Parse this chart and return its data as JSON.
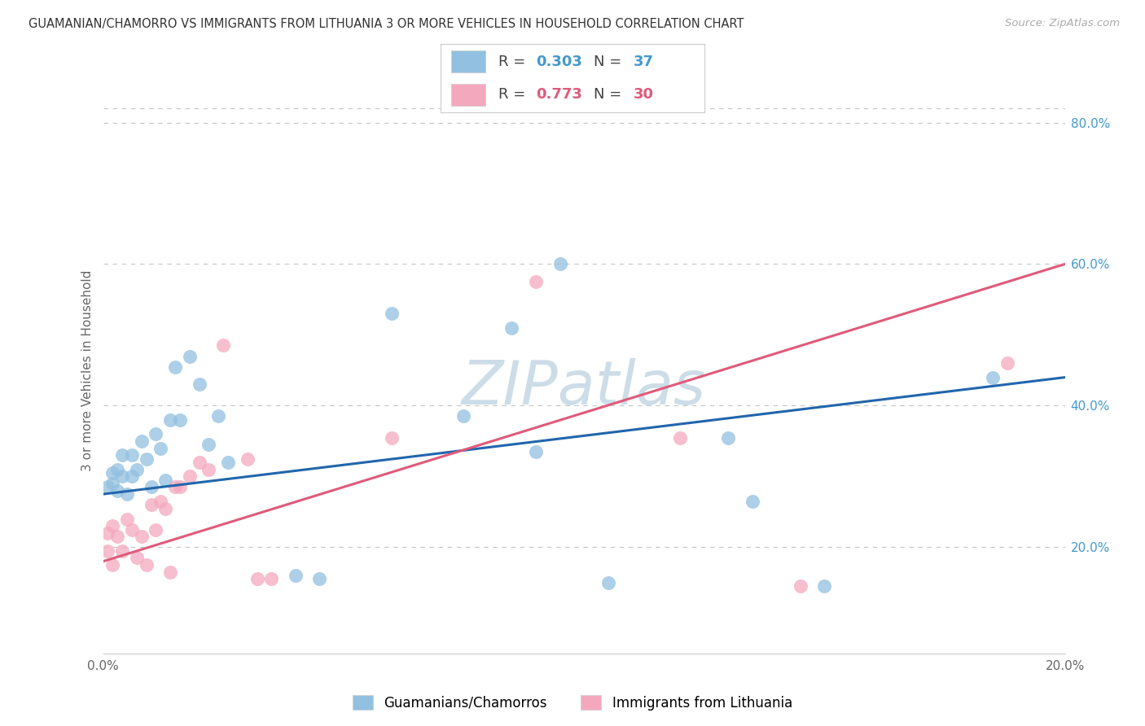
{
  "title": "GUAMANIAN/CHAMORRO VS IMMIGRANTS FROM LITHUANIA 3 OR MORE VEHICLES IN HOUSEHOLD CORRELATION CHART",
  "source": "Source: ZipAtlas.com",
  "ylabel": "3 or more Vehicles in Household",
  "xlim": [
    0.0,
    0.2
  ],
  "ylim": [
    0.05,
    0.85
  ],
  "ytick_right": [
    0.2,
    0.4,
    0.6,
    0.8
  ],
  "ytick_right_labels": [
    "20.0%",
    "40.0%",
    "60.0%",
    "80.0%"
  ],
  "blue_color": "#92c0e0",
  "pink_color": "#f4a8be",
  "blue_line_color": "#2166ac",
  "pink_line_color": "#e05a7a",
  "blue_R": 0.303,
  "blue_N": 37,
  "pink_R": 0.773,
  "pink_N": 30,
  "watermark": "ZIPatlas",
  "watermark_color": "#ccdde8",
  "background_color": "#ffffff",
  "legend_label_blue": "Guamanians/Chamorros",
  "legend_label_pink": "Immigrants from Lithuania",
  "blue_x": [
    0.001,
    0.002,
    0.002,
    0.003,
    0.003,
    0.004,
    0.004,
    0.005,
    0.006,
    0.006,
    0.007,
    0.008,
    0.009,
    0.01,
    0.011,
    0.012,
    0.013,
    0.014,
    0.015,
    0.016,
    0.018,
    0.02,
    0.022,
    0.024,
    0.026,
    0.04,
    0.045,
    0.06,
    0.075,
    0.085,
    0.09,
    0.095,
    0.105,
    0.13,
    0.135,
    0.15,
    0.185
  ],
  "blue_y": [
    0.285,
    0.29,
    0.305,
    0.28,
    0.31,
    0.3,
    0.33,
    0.275,
    0.3,
    0.33,
    0.31,
    0.35,
    0.325,
    0.285,
    0.36,
    0.34,
    0.295,
    0.38,
    0.455,
    0.38,
    0.47,
    0.43,
    0.345,
    0.385,
    0.32,
    0.16,
    0.155,
    0.53,
    0.385,
    0.51,
    0.335,
    0.6,
    0.15,
    0.355,
    0.265,
    0.145,
    0.44
  ],
  "pink_x": [
    0.001,
    0.001,
    0.002,
    0.002,
    0.003,
    0.004,
    0.005,
    0.006,
    0.007,
    0.008,
    0.009,
    0.01,
    0.011,
    0.012,
    0.013,
    0.014,
    0.015,
    0.016,
    0.018,
    0.02,
    0.022,
    0.025,
    0.03,
    0.032,
    0.035,
    0.06,
    0.09,
    0.12,
    0.145,
    0.188
  ],
  "pink_y": [
    0.195,
    0.22,
    0.175,
    0.23,
    0.215,
    0.195,
    0.24,
    0.225,
    0.185,
    0.215,
    0.175,
    0.26,
    0.225,
    0.265,
    0.255,
    0.165,
    0.285,
    0.285,
    0.3,
    0.32,
    0.31,
    0.485,
    0.325,
    0.155,
    0.155,
    0.355,
    0.575,
    0.355,
    0.145,
    0.46
  ]
}
